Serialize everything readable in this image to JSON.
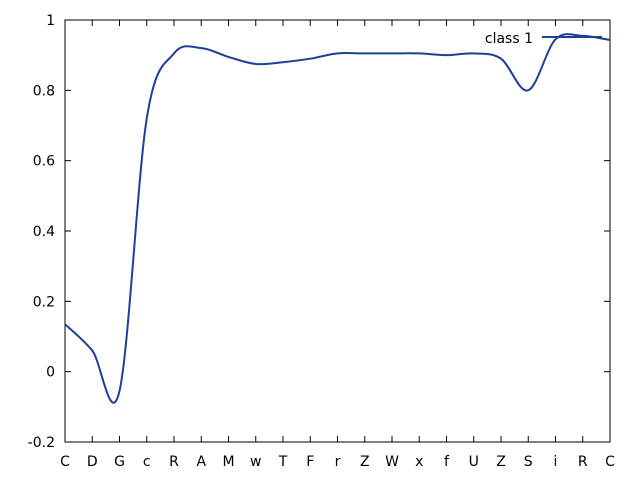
{
  "chart_data": {
    "type": "line",
    "categories": [
      "C",
      "D",
      "G",
      "c",
      "R",
      "A",
      "M",
      "w",
      "T",
      "F",
      "r",
      "Z",
      "W",
      "x",
      "f",
      "U",
      "Z",
      "S",
      "i",
      "R",
      "C"
    ],
    "ylim": [
      -0.2,
      1
    ],
    "yticks": [
      "-0.2",
      "0",
      "0.2",
      "0.4",
      "0.6",
      "0.8",
      "1"
    ],
    "ytick_values": [
      -0.2,
      0,
      0.2,
      0.4,
      0.6,
      0.8,
      1.0
    ],
    "grid": false,
    "legend_position": "top-right",
    "series": [
      {
        "name": "class 1",
        "color": "#1f3f99",
        "values": [
          0.135,
          0.06,
          -0.055,
          0.72,
          0.905,
          0.92,
          0.895,
          0.875,
          0.88,
          0.89,
          0.905,
          0.905,
          0.905,
          0.905,
          0.9,
          0.905,
          0.89,
          0.8,
          0.945,
          0.955,
          0.943
        ]
      }
    ]
  }
}
